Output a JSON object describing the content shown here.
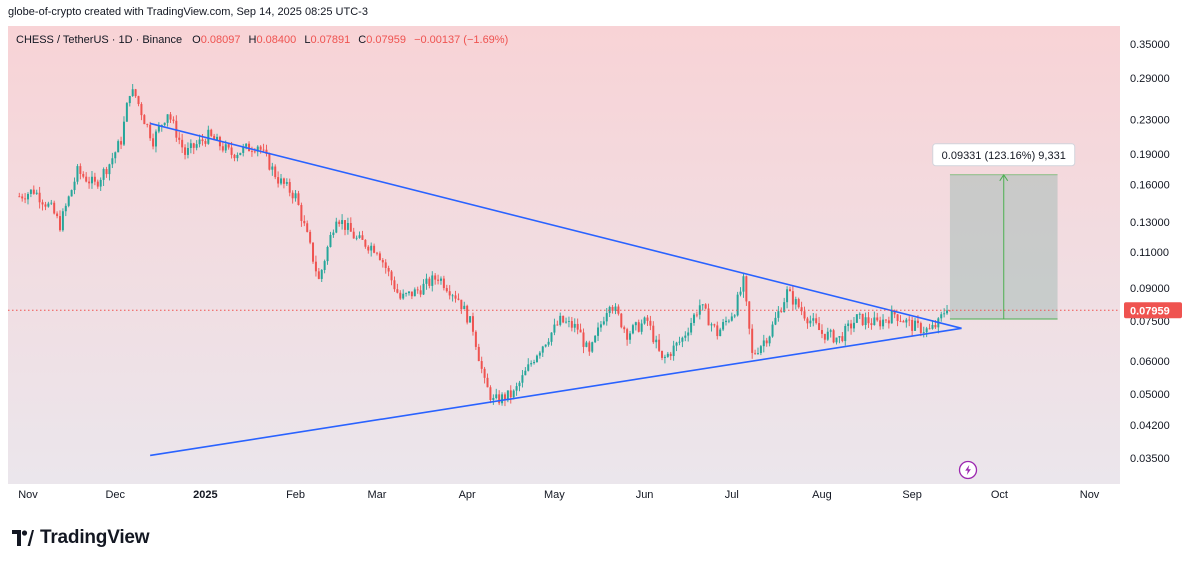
{
  "attribution": "globe-of-crypto created with TradingView.com, Sep 14, 2025 08:25 UTC-3",
  "brand": "TradingView",
  "legend": {
    "symbol": "CHESS / TetherUS · 1D · Binance",
    "open_label": "O",
    "open": "0.08097",
    "high_label": "H",
    "high": "0.08400",
    "low_label": "L",
    "low": "0.07891",
    "close_label": "C",
    "close": "0.07959",
    "change": "−0.00137 (−1.69%)"
  },
  "colors": {
    "up": "#26a69a",
    "down": "#ef5350",
    "trendline": "#2962ff",
    "measure_box": "rgba(160,186,180,0.5)",
    "measure_line": "#4caf50",
    "price_label": "#ef5350",
    "background_top": "#f8d3d6",
    "background_bottom": "#ebe6ec"
  },
  "chart_data": {
    "type": "candlestick",
    "scale": "log",
    "y_ticks": [
      "0.35000",
      "0.29000",
      "0.23000",
      "0.19000",
      "0.16000",
      "0.13000",
      "0.11000",
      "0.09000",
      "0.07500",
      "0.06000",
      "0.05000",
      "0.04200",
      "0.03500"
    ],
    "x_ticks": [
      {
        "label": "Nov",
        "date": "2024-11-01"
      },
      {
        "label": "Dec",
        "date": "2024-12-01"
      },
      {
        "label": "2025",
        "date": "2025-01-01",
        "bold": true
      },
      {
        "label": "Feb",
        "date": "2025-02-01"
      },
      {
        "label": "Mar",
        "date": "2025-03-01"
      },
      {
        "label": "Apr",
        "date": "2025-04-01"
      },
      {
        "label": "May",
        "date": "2025-05-01"
      },
      {
        "label": "Jun",
        "date": "2025-06-01"
      },
      {
        "label": "Jul",
        "date": "2025-07-01"
      },
      {
        "label": "Aug",
        "date": "2025-08-01"
      },
      {
        "label": "Sep",
        "date": "2025-09-01"
      },
      {
        "label": "Oct",
        "date": "2025-10-01"
      },
      {
        "label": "Nov",
        "date": "2025-11-01"
      }
    ],
    "current_price": "0.07959",
    "price_series": [
      {
        "date": "2024-10-29",
        "close": 0.15
      },
      {
        "date": "2024-11-03",
        "close": 0.155
      },
      {
        "date": "2024-11-09",
        "close": 0.14
      },
      {
        "date": "2024-11-12",
        "close": 0.128
      },
      {
        "date": "2024-11-18",
        "close": 0.172
      },
      {
        "date": "2024-11-24",
        "close": 0.16
      },
      {
        "date": "2024-11-29",
        "close": 0.18
      },
      {
        "date": "2024-12-03",
        "close": 0.205
      },
      {
        "date": "2024-12-06",
        "close": 0.27
      },
      {
        "date": "2024-12-08",
        "close": 0.262
      },
      {
        "date": "2024-12-11",
        "close": 0.23
      },
      {
        "date": "2024-12-14",
        "close": 0.205
      },
      {
        "date": "2024-12-19",
        "close": 0.24
      },
      {
        "date": "2024-12-25",
        "close": 0.19
      },
      {
        "date": "2025-01-02",
        "close": 0.21
      },
      {
        "date": "2025-01-10",
        "close": 0.19
      },
      {
        "date": "2025-01-19",
        "close": 0.2
      },
      {
        "date": "2025-01-26",
        "close": 0.165
      },
      {
        "date": "2025-02-01",
        "close": 0.15
      },
      {
        "date": "2025-02-05",
        "close": 0.12
      },
      {
        "date": "2025-02-09",
        "close": 0.094
      },
      {
        "date": "2025-02-15",
        "close": 0.135
      },
      {
        "date": "2025-02-22",
        "close": 0.118
      },
      {
        "date": "2025-03-01",
        "close": 0.112
      },
      {
        "date": "2025-03-09",
        "close": 0.085
      },
      {
        "date": "2025-03-14",
        "close": 0.088
      },
      {
        "date": "2025-03-22",
        "close": 0.096
      },
      {
        "date": "2025-03-29",
        "close": 0.085
      },
      {
        "date": "2025-04-03",
        "close": 0.072
      },
      {
        "date": "2025-04-07",
        "close": 0.053
      },
      {
        "date": "2025-04-10",
        "close": 0.048
      },
      {
        "date": "2025-04-17",
        "close": 0.05
      },
      {
        "date": "2025-04-25",
        "close": 0.063
      },
      {
        "date": "2025-05-03",
        "close": 0.075
      },
      {
        "date": "2025-05-09",
        "close": 0.072
      },
      {
        "date": "2025-05-13",
        "close": 0.062
      },
      {
        "date": "2025-05-20",
        "close": 0.084
      },
      {
        "date": "2025-05-26",
        "close": 0.07
      },
      {
        "date": "2025-06-02",
        "close": 0.075
      },
      {
        "date": "2025-06-07",
        "close": 0.06
      },
      {
        "date": "2025-06-14",
        "close": 0.068
      },
      {
        "date": "2025-06-20",
        "close": 0.082
      },
      {
        "date": "2025-06-26",
        "close": 0.07
      },
      {
        "date": "2025-07-02",
        "close": 0.08
      },
      {
        "date": "2025-07-05",
        "close": 0.093
      },
      {
        "date": "2025-07-08",
        "close": 0.062
      },
      {
        "date": "2025-07-14",
        "close": 0.07
      },
      {
        "date": "2025-07-20",
        "close": 0.088
      },
      {
        "date": "2025-07-26",
        "close": 0.078
      },
      {
        "date": "2025-08-01",
        "close": 0.07
      },
      {
        "date": "2025-08-07",
        "close": 0.068
      },
      {
        "date": "2025-08-13",
        "close": 0.076
      },
      {
        "date": "2025-08-20",
        "close": 0.074
      },
      {
        "date": "2025-08-26",
        "close": 0.078
      },
      {
        "date": "2025-09-01",
        "close": 0.073
      },
      {
        "date": "2025-09-07",
        "close": 0.071
      },
      {
        "date": "2025-09-10",
        "close": 0.074
      },
      {
        "date": "2025-09-13",
        "close": 0.0816
      },
      {
        "date": "2025-09-14",
        "close": 0.0796
      }
    ],
    "trendlines": [
      {
        "name": "upper",
        "from": {
          "date": "2024-12-13",
          "price": 0.225
        },
        "to": {
          "date": "2025-09-18",
          "price": 0.072
        }
      },
      {
        "name": "lower",
        "from": {
          "date": "2024-12-13",
          "price": 0.0355
        },
        "to": {
          "date": "2025-09-18",
          "price": 0.072
        }
      }
    ],
    "measure": {
      "label": "0.09331 (123.16%) 9,331",
      "from": {
        "date": "2025-09-14",
        "price": 0.0758
      },
      "to": {
        "date": "2025-10-21",
        "price": 0.1691
      }
    }
  }
}
